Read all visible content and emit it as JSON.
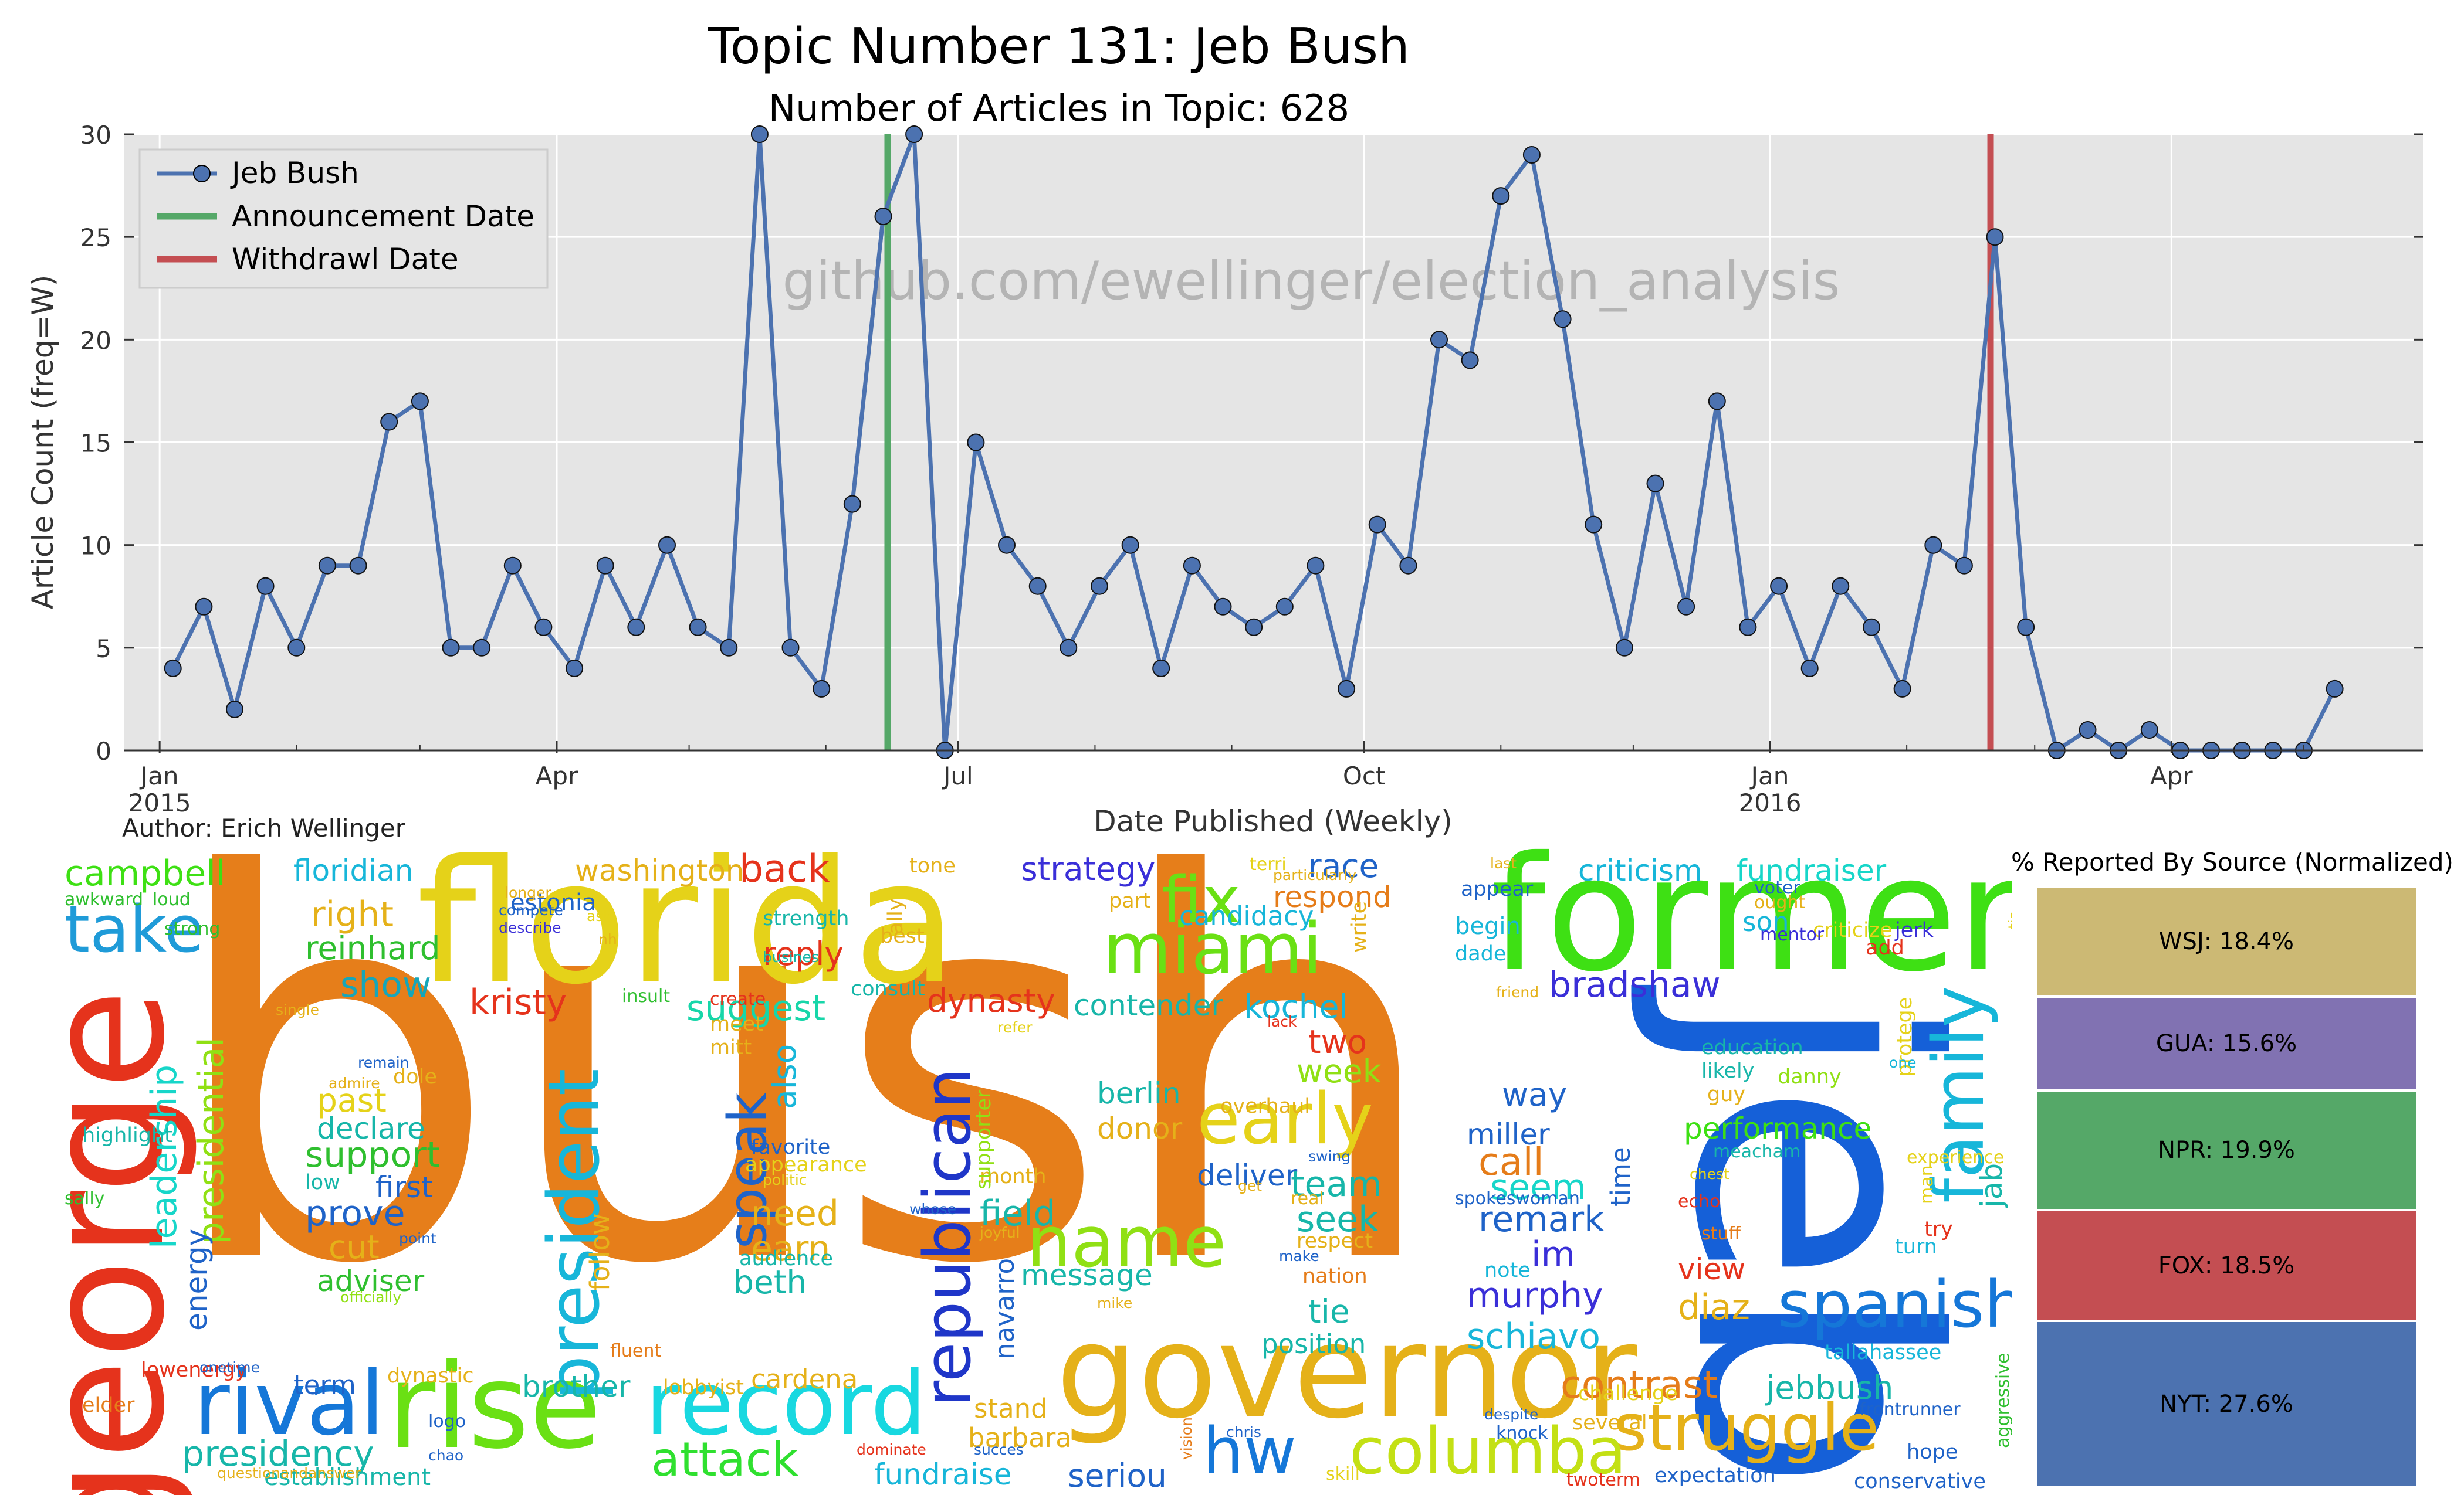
{
  "title": "Topic Number 131: Jeb Bush",
  "subtitle": "Number of Articles in Topic: 628",
  "author": "Author: Erich Wellinger",
  "watermark": "github.com/ewellinger/election_analysis",
  "chart_data": {
    "type": "line",
    "xlabel": "Date Published (Weekly)",
    "ylabel": "Article Count (freq=W)",
    "ylim": [
      0,
      30
    ],
    "yticks": [
      0,
      5,
      10,
      15,
      20,
      25,
      30
    ],
    "xlim": [
      "2014-12-24",
      "2016-05-28"
    ],
    "xticks": [
      {
        "date": "2015-01-01",
        "label": "Jan",
        "sublabel": "2015"
      },
      {
        "date": "2015-04-01",
        "label": "Apr",
        "sublabel": ""
      },
      {
        "date": "2015-07-01",
        "label": "Jul",
        "sublabel": ""
      },
      {
        "date": "2015-10-01",
        "label": "Oct",
        "sublabel": ""
      },
      {
        "date": "2016-01-01",
        "label": "Jan",
        "sublabel": "2016"
      },
      {
        "date": "2016-04-01",
        "label": "Apr",
        "sublabel": ""
      }
    ],
    "grid": true,
    "legend_position": "upper-left",
    "series": [
      {
        "name": "Jeb Bush",
        "color": "#4c72b0",
        "x_start": "2015-01-04",
        "x_step_days": 7,
        "values": [
          4,
          7,
          2,
          8,
          5,
          9,
          9,
          16,
          17,
          5,
          5,
          9,
          6,
          4,
          9,
          6,
          10,
          6,
          5,
          30,
          5,
          3,
          12,
          26,
          30,
          0,
          15,
          10,
          8,
          5,
          8,
          10,
          4,
          9,
          7,
          6,
          7,
          9,
          3,
          11,
          9,
          20,
          19,
          27,
          29,
          21,
          11,
          5,
          13,
          7,
          17,
          6,
          8,
          4,
          8,
          6,
          3,
          10,
          9,
          25,
          6,
          0,
          1,
          0,
          1,
          0,
          0,
          0,
          0,
          0,
          3
        ]
      }
    ],
    "vlines": [
      {
        "name": "Announcement Date",
        "date": "2015-06-15",
        "color": "#55a868"
      },
      {
        "name": "Withdrawl Date",
        "date": "2016-02-20",
        "color": "#c44e52"
      }
    ]
  },
  "sources": {
    "title": "% Reported By Source (Normalized)",
    "items": [
      {
        "label": "WSJ: 18.4%",
        "value": 18.4,
        "color": "#ccb974"
      },
      {
        "label": "GUA: 15.6%",
        "value": 15.6,
        "color": "#8172b2"
      },
      {
        "label": "NPR: 19.9%",
        "value": 19.9,
        "color": "#55a868"
      },
      {
        "label": "FOX: 18.5%",
        "value": 18.5,
        "color": "#c44e52"
      },
      {
        "label": "NYT: 27.6%",
        "value": 27.6,
        "color": "#4c72b0"
      }
    ]
  },
  "wordcloud": [
    {
      "w": "bush",
      "c": "#e67e1a"
    },
    {
      "w": "florida",
      "c": "#e5d219"
    },
    {
      "w": "former",
      "c": "#3ee014"
    },
    {
      "w": "jeb",
      "c": "#1560d8"
    },
    {
      "w": "george",
      "c": "#e5331c"
    },
    {
      "w": "governor",
      "c": "#e5b119"
    },
    {
      "w": "rise",
      "c": "#6ae014"
    },
    {
      "w": "rival",
      "c": "#1577d8"
    },
    {
      "w": "record",
      "c": "#18d8e0"
    },
    {
      "w": "republican",
      "c": "#1f36c8"
    },
    {
      "w": "miami",
      "c": "#6ae014"
    },
    {
      "w": "president",
      "c": "#17b6d9"
    },
    {
      "w": "family",
      "c": "#17b6d9"
    },
    {
      "w": "spanish",
      "c": "#1577d8"
    },
    {
      "w": "name",
      "c": "#90e014"
    },
    {
      "w": "early",
      "c": "#e5d219"
    },
    {
      "w": "struggle",
      "c": "#e5b119"
    },
    {
      "w": "columba",
      "c": "#c3e014"
    },
    {
      "w": "hw",
      "c": "#1577d8"
    },
    {
      "w": "take",
      "c": "#1f9bd8"
    },
    {
      "w": "speak",
      "c": "#1f63c8"
    },
    {
      "w": "fix",
      "c": "#6ae014"
    },
    {
      "w": "attack",
      "c": "#2fe02f"
    },
    {
      "w": "campbell",
      "c": "#3ee014"
    },
    {
      "w": "floridian",
      "c": "#17b6d9"
    },
    {
      "w": "washington",
      "c": "#e5b119"
    },
    {
      "w": "back",
      "c": "#e5331c"
    },
    {
      "w": "right",
      "c": "#e5b119"
    },
    {
      "w": "reinhard",
      "c": "#2fbf2f"
    },
    {
      "w": "show",
      "c": "#17a6b9"
    },
    {
      "w": "kristy",
      "c": "#e5331c"
    },
    {
      "w": "suggest",
      "c": "#17d6a9"
    },
    {
      "w": "reply",
      "c": "#e5331c"
    },
    {
      "w": "dynasty",
      "c": "#e5331c"
    },
    {
      "w": "contender",
      "c": "#17b6a9"
    },
    {
      "w": "strategy",
      "c": "#3a2fd8"
    },
    {
      "w": "race",
      "c": "#1f63c8"
    },
    {
      "w": "respond",
      "c": "#e57c19"
    },
    {
      "w": "candidacy",
      "c": "#17b6d9"
    },
    {
      "w": "kochel",
      "c": "#17b6d9"
    },
    {
      "w": "two",
      "c": "#e5331c"
    },
    {
      "w": "week",
      "c": "#90e014"
    },
    {
      "w": "criticism",
      "c": "#17b6d9"
    },
    {
      "w": "fundraiser",
      "c": "#17d6c9"
    },
    {
      "w": "bradshaw",
      "c": "#3a2fd8"
    },
    {
      "w": "performance",
      "c": "#3ee014"
    },
    {
      "w": "way",
      "c": "#1f63c8"
    },
    {
      "w": "miller",
      "c": "#1f63c8"
    },
    {
      "w": "call",
      "c": "#e57c19"
    },
    {
      "w": "seem",
      "c": "#17d6c9"
    },
    {
      "w": "remark",
      "c": "#1f63c8"
    },
    {
      "w": "im",
      "c": "#3a2fd8"
    },
    {
      "w": "murphy",
      "c": "#3a2fd8"
    },
    {
      "w": "diaz",
      "c": "#e5b119"
    },
    {
      "w": "schiavo",
      "c": "#17b6d9"
    },
    {
      "w": "contrast",
      "c": "#e57c19"
    },
    {
      "w": "jebbush",
      "c": "#17b6a9"
    },
    {
      "w": "view",
      "c": "#e5331c"
    },
    {
      "w": "presidential",
      "c": "#90e014"
    },
    {
      "w": "leadership",
      "c": "#17d6c9"
    },
    {
      "w": "energy",
      "c": "#1f63c8"
    },
    {
      "w": "past",
      "c": "#e5d219"
    },
    {
      "w": "declare",
      "c": "#17b6a9"
    },
    {
      "w": "support",
      "c": "#2fbf2f"
    },
    {
      "w": "first",
      "c": "#1f63c8"
    },
    {
      "w": "prove",
      "c": "#1f63c8"
    },
    {
      "w": "cut",
      "c": "#e5b119"
    },
    {
      "w": "adviser",
      "c": "#2fbf2f"
    },
    {
      "w": "also",
      "c": "#17b6d9"
    },
    {
      "w": "need",
      "c": "#e5b119"
    },
    {
      "w": "earn",
      "c": "#e5b119"
    },
    {
      "w": "beth",
      "c": "#17b6a9"
    },
    {
      "w": "field",
      "c": "#17b6a9"
    },
    {
      "w": "message",
      "c": "#17b6a9"
    },
    {
      "w": "berlin",
      "c": "#17b6a9"
    },
    {
      "w": "donor",
      "c": "#e5b119"
    },
    {
      "w": "deliver",
      "c": "#1f63c8"
    },
    {
      "w": "team",
      "c": "#17b6a9"
    },
    {
      "w": "seek",
      "c": "#17b6a9"
    },
    {
      "w": "tie",
      "c": "#17b6a9"
    },
    {
      "w": "position",
      "c": "#17b6a9"
    },
    {
      "w": "brother",
      "c": "#17b6a9"
    },
    {
      "w": "cardena",
      "c": "#e5b119"
    },
    {
      "w": "term",
      "c": "#1f63c8"
    },
    {
      "w": "presidency",
      "c": "#17b6a9"
    },
    {
      "w": "establishment",
      "c": "#17b6a9"
    },
    {
      "w": "stand",
      "c": "#e5b119"
    },
    {
      "w": "barbara",
      "c": "#e5b119"
    },
    {
      "w": "fundraise",
      "c": "#17b6d9"
    },
    {
      "w": "seriou",
      "c": "#1f63c8"
    },
    {
      "w": "highlight",
      "c": "#17b6a9"
    },
    {
      "w": "follow",
      "c": "#e5b119"
    },
    {
      "w": "navarro",
      "c": "#1f63c8"
    },
    {
      "w": "month",
      "c": "#e5b119"
    },
    {
      "w": "education",
      "c": "#17b6a9"
    },
    {
      "w": "likely",
      "c": "#17b6a9"
    },
    {
      "w": "guy",
      "c": "#e5b119"
    },
    {
      "w": "danny",
      "c": "#90e014"
    },
    {
      "w": "protege",
      "c": "#e5d219"
    },
    {
      "w": "jab",
      "c": "#17b6a9"
    },
    {
      "w": "turn",
      "c": "#17b6d9"
    },
    {
      "w": "try",
      "c": "#e5331c"
    },
    {
      "w": "hope",
      "c": "#1f63c8"
    },
    {
      "w": "tallahassee",
      "c": "#17b6d9"
    },
    {
      "w": "conservative",
      "c": "#1f63c8"
    },
    {
      "w": "expectation",
      "c": "#1f63c8"
    },
    {
      "w": "several",
      "c": "#e5b119"
    },
    {
      "w": "challenge",
      "c": "#e5d219"
    },
    {
      "w": "note",
      "c": "#17b6d9"
    },
    {
      "w": "nation",
      "c": "#e57c19"
    },
    {
      "w": "son",
      "c": "#17b6d9"
    },
    {
      "w": "criticize",
      "c": "#e5d219"
    },
    {
      "w": "jerk",
      "c": "#3a2fd8"
    },
    {
      "w": "add",
      "c": "#e5331c"
    },
    {
      "w": "begin",
      "c": "#17b6d9"
    },
    {
      "w": "appear",
      "c": "#1f63c8"
    },
    {
      "w": "mentor",
      "c": "#3a2fd8"
    },
    {
      "w": "time",
      "c": "#1f63c8"
    },
    {
      "w": "lowenergy",
      "c": "#e5331c"
    },
    {
      "w": "elder",
      "c": "#e57c19"
    },
    {
      "w": "sally",
      "c": "#2fbf2f"
    },
    {
      "w": "awkward",
      "c": "#2fbf2f"
    },
    {
      "w": "loud",
      "c": "#2fbf2f"
    },
    {
      "w": "strong",
      "c": "#2fbf2f"
    },
    {
      "w": "estonia",
      "c": "#1f63c8"
    },
    {
      "w": "tone",
      "c": "#e5b119"
    },
    {
      "w": "strength",
      "c": "#17b6a9"
    },
    {
      "w": "best",
      "c": "#e5b119"
    },
    {
      "w": "ally",
      "c": "#e5b119"
    },
    {
      "w": "part",
      "c": "#e5b119"
    },
    {
      "w": "favorite",
      "c": "#1f63c8"
    },
    {
      "w": "appearance",
      "c": "#e5d219"
    },
    {
      "w": "audience",
      "c": "#17b6a9"
    },
    {
      "w": "mitt",
      "c": "#e5b119"
    },
    {
      "w": "meet",
      "c": "#e5b119"
    },
    {
      "w": "consult",
      "c": "#17b6a9"
    },
    {
      "w": "supporter",
      "c": "#90e014"
    },
    {
      "w": "overhaul",
      "c": "#e5b119"
    },
    {
      "w": "write",
      "c": "#e5b119"
    },
    {
      "w": "dade",
      "c": "#17b6d9"
    },
    {
      "w": "dole",
      "c": "#e5b119"
    },
    {
      "w": "lobbyist",
      "c": "#e5b119"
    },
    {
      "w": "dynastic",
      "c": "#e5b119"
    },
    {
      "w": "knock",
      "c": "#1f63c8"
    },
    {
      "w": "fluent",
      "c": "#e57c19"
    },
    {
      "w": "create",
      "c": "#e5331c"
    },
    {
      "w": "frontrunner",
      "c": "#1f63c8"
    },
    {
      "w": "aggressive",
      "c": "#2fbf2f"
    },
    {
      "w": "experience",
      "c": "#e5d219"
    },
    {
      "w": "man",
      "c": "#e5d219"
    },
    {
      "w": "meacham",
      "c": "#17b6a9"
    },
    {
      "w": "ought",
      "c": "#e5b119"
    },
    {
      "w": "voter",
      "c": "#1f63c8"
    },
    {
      "w": "stuff",
      "c": "#e57c19"
    },
    {
      "w": "echo",
      "c": "#e5331c"
    },
    {
      "w": "insult",
      "c": "#2fbf2f"
    },
    {
      "w": "spokeswoman",
      "c": "#1f63c8"
    },
    {
      "w": "skill",
      "c": "#e5d219"
    },
    {
      "w": "twoterm",
      "c": "#e5331c"
    },
    {
      "w": "logo",
      "c": "#1f63c8"
    },
    {
      "w": "onetime",
      "c": "#1f63c8"
    },
    {
      "w": "questionandanswer",
      "c": "#e5b119"
    },
    {
      "w": "officially",
      "c": "#90e014"
    },
    {
      "w": "low",
      "c": "#17b6a9"
    },
    {
      "w": "single",
      "c": "#e5b119"
    },
    {
      "w": "remain",
      "c": "#1f63c8"
    },
    {
      "w": "admire",
      "c": "#e5b119"
    },
    {
      "w": "longer",
      "c": "#e5b119"
    },
    {
      "w": "compete",
      "c": "#1f63c8"
    },
    {
      "w": "describe",
      "c": "#3a2fd8"
    },
    {
      "w": "ask",
      "c": "#e5d219"
    },
    {
      "w": "nh",
      "c": "#e5b119"
    },
    {
      "w": "busines",
      "c": "#17b6a9"
    },
    {
      "w": "refer",
      "c": "#e5d219"
    },
    {
      "w": "politic",
      "c": "#e5d219"
    },
    {
      "w": "whose",
      "c": "#1f63c8"
    },
    {
      "w": "joyful",
      "c": "#e5b119"
    },
    {
      "w": "point",
      "c": "#1f63c8"
    },
    {
      "w": "mike",
      "c": "#e5b119"
    },
    {
      "w": "make",
      "c": "#1f63c8"
    },
    {
      "w": "respect",
      "c": "#e5b119"
    },
    {
      "w": "real",
      "c": "#e5b119"
    },
    {
      "w": "get",
      "c": "#e5b119"
    },
    {
      "w": "swing",
      "c": "#1f63c8"
    },
    {
      "w": "lack",
      "c": "#e5331c"
    },
    {
      "w": "terri",
      "c": "#e5d219"
    },
    {
      "w": "particularly",
      "c": "#e5b119"
    },
    {
      "w": "last",
      "c": "#e5b119"
    },
    {
      "w": "friend",
      "c": "#e5b119"
    },
    {
      "w": "chest",
      "c": "#e5d219"
    },
    {
      "w": "one",
      "c": "#17b6d9"
    },
    {
      "w": "despite",
      "c": "#1f63c8"
    },
    {
      "w": "chris",
      "c": "#1f63c8"
    },
    {
      "w": "vision",
      "c": "#e57c19"
    },
    {
      "w": "dominate",
      "c": "#e5331c"
    },
    {
      "w": "succes",
      "c": "#1f63c8"
    },
    {
      "w": "chao",
      "c": "#1f63c8"
    },
    {
      "w": "tia",
      "c": "#e5d219"
    }
  ]
}
